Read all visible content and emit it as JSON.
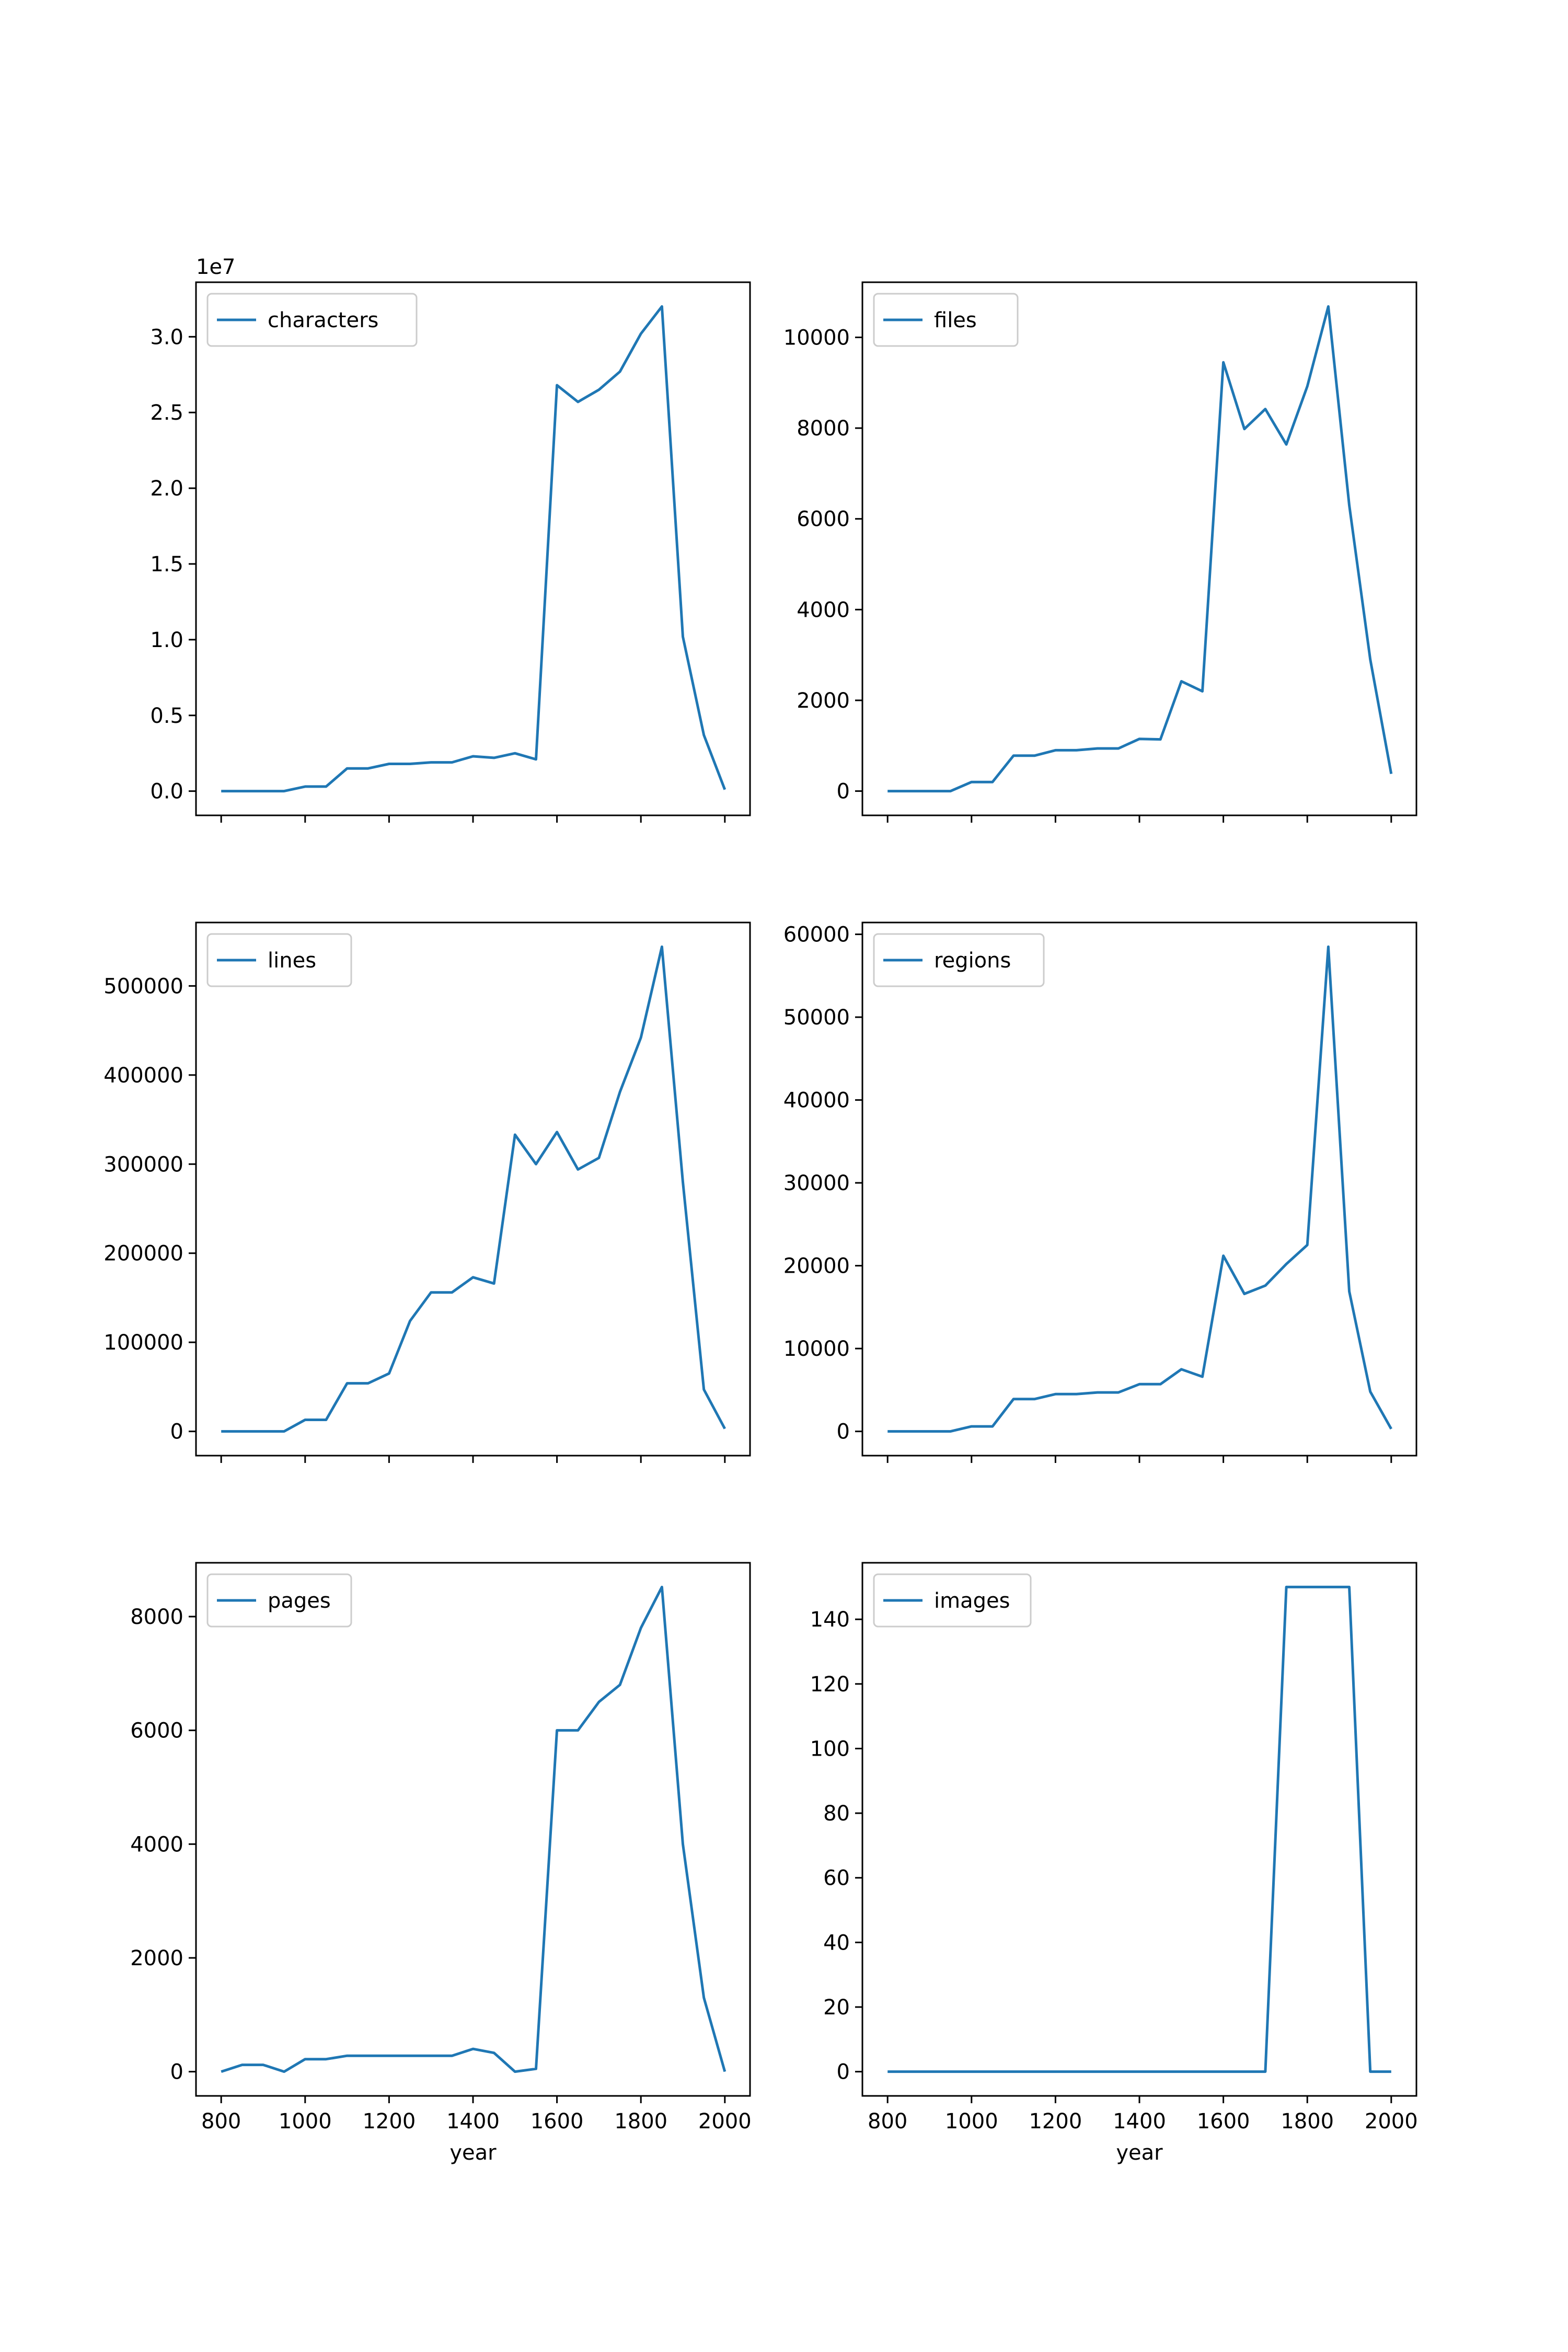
{
  "figure": {
    "background": "#ffffff",
    "line_color": "#1f77b4"
  },
  "chart_data": [
    {
      "type": "line",
      "legend": "characters",
      "legend_position": "upper-left",
      "offset_label": "1e7",
      "xlabel": "",
      "x": [
        800,
        850,
        900,
        950,
        1000,
        1050,
        1100,
        1150,
        1200,
        1250,
        1300,
        1350,
        1400,
        1450,
        1500,
        1550,
        1600,
        1650,
        1700,
        1750,
        1800,
        1850,
        1900,
        1950,
        2000
      ],
      "values": [
        0.0,
        0.0,
        0.0,
        0.0,
        0.03,
        0.03,
        0.15,
        0.15,
        0.18,
        0.18,
        0.19,
        0.19,
        0.23,
        0.22,
        0.25,
        0.21,
        2.68,
        2.57,
        2.65,
        2.77,
        3.02,
        3.2,
        1.02,
        0.37,
        0.01
      ],
      "ylim": [
        -0.16,
        3.36
      ],
      "yticks": [
        0.0,
        0.5,
        1.0,
        1.5,
        2.0,
        2.5,
        3.0
      ],
      "ytick_labels": [
        "0.0",
        "0.5",
        "1.0",
        "1.5",
        "2.0",
        "2.5",
        "3.0"
      ],
      "xlim": [
        740,
        2060
      ],
      "xticks": [
        800,
        1000,
        1200,
        1400,
        1600,
        1800,
        2000
      ],
      "xtick_labels": []
    },
    {
      "type": "line",
      "legend": "files",
      "legend_position": "upper-left",
      "offset_label": "",
      "xlabel": "",
      "x": [
        800,
        850,
        900,
        950,
        1000,
        1050,
        1100,
        1150,
        1200,
        1250,
        1300,
        1350,
        1400,
        1450,
        1500,
        1550,
        1600,
        1650,
        1700,
        1750,
        1800,
        1850,
        1900,
        1950,
        2000
      ],
      "values": [
        0,
        0,
        0,
        0,
        200,
        200,
        780,
        780,
        900,
        900,
        940,
        940,
        1150,
        1140,
        2420,
        2200,
        9450,
        7980,
        8420,
        7640,
        8920,
        10680,
        6300,
        2900,
        380
      ],
      "ylim": [
        -535,
        11215
      ],
      "yticks": [
        0,
        2000,
        4000,
        6000,
        8000,
        10000
      ],
      "ytick_labels": [
        "0",
        "2000",
        "4000",
        "6000",
        "8000",
        "10000"
      ],
      "xlim": [
        740,
        2060
      ],
      "xticks": [
        800,
        1000,
        1200,
        1400,
        1600,
        1800,
        2000
      ],
      "xtick_labels": []
    },
    {
      "type": "line",
      "legend": "lines",
      "legend_position": "upper-left",
      "offset_label": "",
      "xlabel": "",
      "x": [
        800,
        850,
        900,
        950,
        1000,
        1050,
        1100,
        1150,
        1200,
        1250,
        1300,
        1350,
        1400,
        1450,
        1500,
        1550,
        1600,
        1650,
        1700,
        1750,
        1800,
        1850,
        1900,
        1950,
        2000
      ],
      "values": [
        0,
        0,
        0,
        0,
        13000,
        13000,
        54000,
        54000,
        65000,
        124000,
        156000,
        156000,
        173000,
        166000,
        333000,
        300000,
        336000,
        294000,
        307000,
        381000,
        442000,
        544000,
        280000,
        47000,
        3000
      ],
      "ylim": [
        -27200,
        571200
      ],
      "yticks": [
        0,
        100000,
        200000,
        300000,
        400000,
        500000
      ],
      "ytick_labels": [
        "0",
        "100000",
        "200000",
        "300000",
        "400000",
        "500000"
      ],
      "xlim": [
        740,
        2060
      ],
      "xticks": [
        800,
        1000,
        1200,
        1400,
        1600,
        1800,
        2000
      ],
      "xtick_labels": []
    },
    {
      "type": "line",
      "legend": "regions",
      "legend_position": "upper-left",
      "offset_label": "",
      "xlabel": "",
      "x": [
        800,
        850,
        900,
        950,
        1000,
        1050,
        1100,
        1150,
        1200,
        1250,
        1300,
        1350,
        1400,
        1450,
        1500,
        1550,
        1600,
        1650,
        1700,
        1750,
        1800,
        1850,
        1900,
        1950,
        2000
      ],
      "values": [
        0,
        0,
        0,
        0,
        600,
        600,
        3900,
        3900,
        4500,
        4500,
        4700,
        4700,
        5700,
        5700,
        7500,
        6600,
        21200,
        16600,
        17600,
        20200,
        22500,
        58500,
        16900,
        4800,
        300
      ],
      "ylim": [
        -2925,
        61425
      ],
      "yticks": [
        0,
        10000,
        20000,
        30000,
        40000,
        50000,
        60000
      ],
      "ytick_labels": [
        "0",
        "10000",
        "20000",
        "30000",
        "40000",
        "50000",
        "60000"
      ],
      "xlim": [
        740,
        2060
      ],
      "xticks": [
        800,
        1000,
        1200,
        1400,
        1600,
        1800,
        2000
      ],
      "xtick_labels": []
    },
    {
      "type": "line",
      "legend": "pages",
      "legend_position": "upper-left",
      "offset_label": "",
      "xlabel": "year",
      "x": [
        800,
        850,
        900,
        950,
        1000,
        1050,
        1100,
        1150,
        1200,
        1250,
        1300,
        1350,
        1400,
        1450,
        1500,
        1550,
        1600,
        1650,
        1700,
        1750,
        1800,
        1850,
        1900,
        1950,
        2000
      ],
      "values": [
        0,
        120,
        120,
        0,
        220,
        220,
        280,
        280,
        280,
        280,
        280,
        280,
        400,
        330,
        0,
        50,
        6000,
        6000,
        6500,
        6800,
        7800,
        8520,
        4000,
        1300,
        0
      ],
      "ylim": [
        -426,
        8946
      ],
      "yticks": [
        0,
        2000,
        4000,
        6000,
        8000
      ],
      "ytick_labels": [
        "0",
        "2000",
        "4000",
        "6000",
        "8000"
      ],
      "xlim": [
        740,
        2060
      ],
      "xticks": [
        800,
        1000,
        1200,
        1400,
        1600,
        1800,
        2000
      ],
      "xtick_labels": [
        "800",
        "1000",
        "1200",
        "1400",
        "1600",
        "1800",
        "2000"
      ]
    },
    {
      "type": "line",
      "legend": "images",
      "legend_position": "upper-left",
      "offset_label": "",
      "xlabel": "year",
      "x": [
        800,
        850,
        900,
        950,
        1000,
        1050,
        1100,
        1150,
        1200,
        1250,
        1300,
        1350,
        1400,
        1450,
        1500,
        1550,
        1600,
        1650,
        1700,
        1750,
        1800,
        1850,
        1900,
        1950,
        2000
      ],
      "values": [
        0,
        0,
        0,
        0,
        0,
        0,
        0,
        0,
        0,
        0,
        0,
        0,
        0,
        0,
        0,
        0,
        0,
        0,
        0,
        150,
        150,
        150,
        150,
        0,
        0
      ],
      "ylim": [
        -7.5,
        157.5
      ],
      "yticks": [
        0,
        20,
        40,
        60,
        80,
        100,
        120,
        140
      ],
      "ytick_labels": [
        "0",
        "20",
        "40",
        "60",
        "80",
        "100",
        "120",
        "140"
      ],
      "xlim": [
        740,
        2060
      ],
      "xticks": [
        800,
        1000,
        1200,
        1400,
        1600,
        1800,
        2000
      ],
      "xtick_labels": [
        "800",
        "1000",
        "1200",
        "1400",
        "1600",
        "1800",
        "2000"
      ]
    }
  ]
}
